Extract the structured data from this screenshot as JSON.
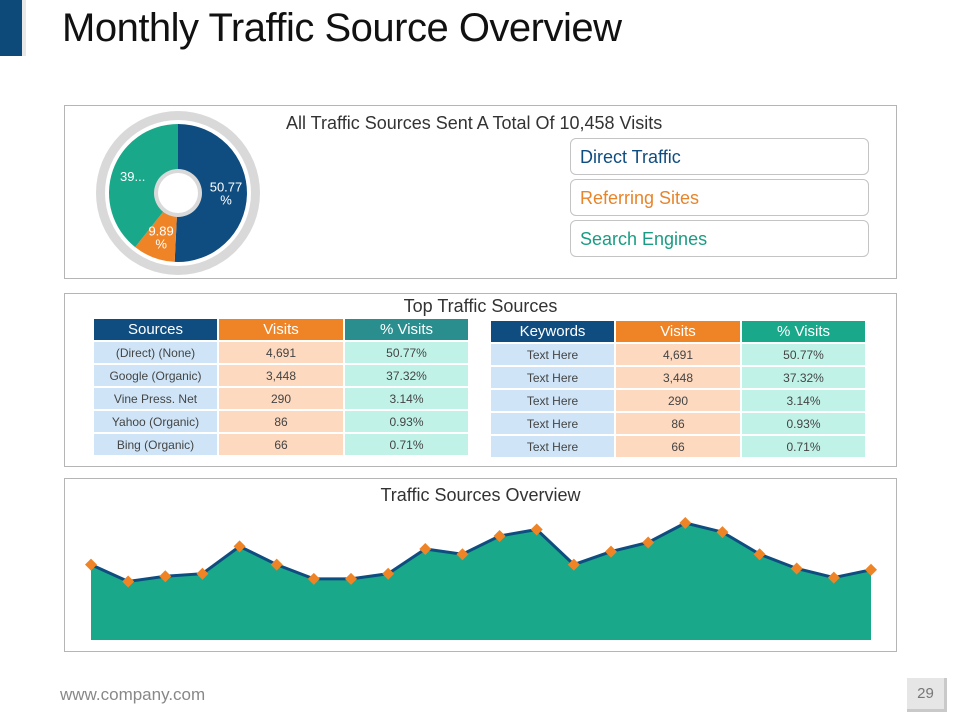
{
  "page": {
    "title": "Monthly Traffic Source Overview",
    "footer_url": "www.company.com",
    "page_number": "29"
  },
  "colors": {
    "blue": "#0f4d80",
    "orange": "#ef8427",
    "teal": "#1aa88a",
    "ring": "#d9d9d9"
  },
  "summary": {
    "title": "All Traffic Sources Sent A Total Of 10,458 Visits",
    "legend": [
      "Direct Traffic",
      "Referring Sites",
      "Search Engines"
    ]
  },
  "top_sources": {
    "title": "Top Traffic Sources",
    "sources_table": {
      "headers": [
        "Sources",
        "Visits",
        "% Visits"
      ],
      "rows": [
        [
          "(Direct) (None)",
          "4,691",
          "50.77%"
        ],
        [
          "Google (Organic)",
          "3,448",
          "37.32%"
        ],
        [
          "Vine Press. Net",
          "290",
          "3.14%"
        ],
        [
          "Yahoo (Organic)",
          "86",
          "0.93%"
        ],
        [
          "Bing (Organic)",
          "66",
          "0.71%"
        ]
      ]
    },
    "keywords_table": {
      "headers": [
        "Keywords",
        "Visits",
        "% Visits"
      ],
      "rows": [
        [
          "Text Here",
          "4,691",
          "50.77%"
        ],
        [
          "Text Here",
          "3,448",
          "37.32%"
        ],
        [
          "Text Here",
          "290",
          "3.14%"
        ],
        [
          "Text Here",
          "86",
          "0.93%"
        ],
        [
          "Text Here",
          "66",
          "0.71%"
        ]
      ]
    }
  },
  "chart_data": [
    {
      "type": "pie",
      "title": "All Traffic Sources Sent A Total Of 10,458 Visits",
      "categories": [
        "Direct Traffic",
        "Referring Sites",
        "Search Engines"
      ],
      "values": [
        50.77,
        9.89,
        39.34
      ],
      "labels": [
        "50.77 %",
        "9.89 %",
        "39..."
      ]
    },
    {
      "type": "area",
      "title": "Traffic Sources Overview",
      "x": [
        1,
        2,
        3,
        4,
        5,
        6,
        7,
        8,
        9,
        10,
        11,
        12,
        13,
        14,
        15,
        16,
        17,
        18,
        19,
        20,
        21,
        22
      ],
      "values": [
        58,
        45,
        49,
        51,
        72,
        58,
        47,
        47,
        51,
        70,
        66,
        80,
        85,
        58,
        68,
        75,
        90,
        83,
        66,
        55,
        48,
        54
      ],
      "ylim": [
        0,
        100
      ]
    }
  ]
}
